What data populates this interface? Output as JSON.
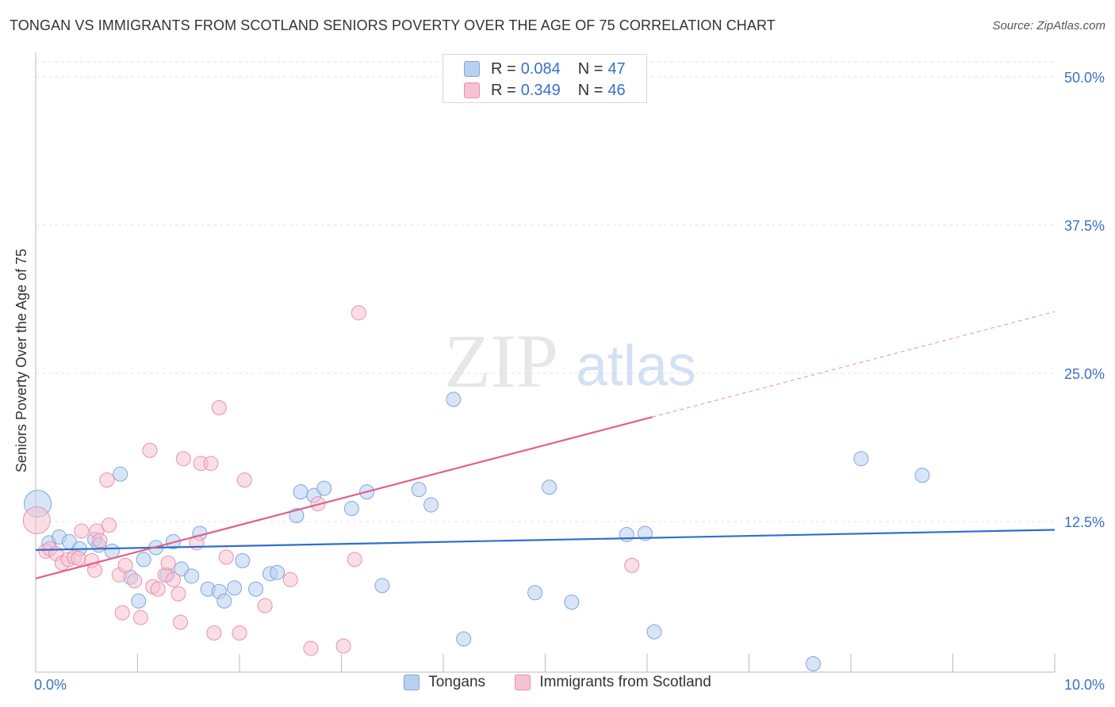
{
  "title": "TONGAN VS IMMIGRANTS FROM SCOTLAND SENIORS POVERTY OVER THE AGE OF 75 CORRELATION CHART",
  "source": "Source: ZipAtlas.com",
  "watermark": {
    "zip": "ZIP",
    "atlas": "atlas"
  },
  "stats": {
    "tongans": {
      "r_label": "R =",
      "r": "0.084",
      "n_label": "N =",
      "n": "47"
    },
    "scotland": {
      "r_label": "R =",
      "r": "0.349",
      "n_label": "N =",
      "n": "46"
    }
  },
  "colors": {
    "blue_fill": "#b8d0f0",
    "blue_stroke": "#7fa6de",
    "blue_line": "#2e6fd0",
    "pink_fill": "#f6c2d1",
    "pink_stroke": "#ea8fab",
    "pink_line": "#e0608b",
    "grid": "#e3e3e3",
    "tick_text": "#3a70c8"
  },
  "chart_data": {
    "type": "scatter",
    "xlabel": "",
    "ylabel": "Seniors Poverty Over the Age of 75",
    "xlim": [
      0,
      10
    ],
    "ylim": [
      0,
      50
    ],
    "x_tick_labels": [
      {
        "value": 0,
        "label": "0.0%"
      },
      {
        "value": 10,
        "label": "10.0%"
      }
    ],
    "y_tick_labels": [
      {
        "value": 12.5,
        "label": "12.5%"
      },
      {
        "value": 25,
        "label": "25.0%"
      },
      {
        "value": 37.5,
        "label": "37.5%"
      },
      {
        "value": 50,
        "label": "50.0%"
      }
    ],
    "grid": true,
    "legend_position": "bottom-center",
    "series": [
      {
        "name": "Tongans",
        "color": "#b8d0f0",
        "trend": {
          "x": [
            0,
            10
          ],
          "y": [
            10.1,
            11.8
          ],
          "dashed_from": null
        },
        "points": [
          {
            "x": 0.02,
            "y": 14.0,
            "big": true
          },
          {
            "x": 0.13,
            "y": 10.7
          },
          {
            "x": 0.23,
            "y": 11.2
          },
          {
            "x": 0.33,
            "y": 10.8
          },
          {
            "x": 0.43,
            "y": 10.2
          },
          {
            "x": 0.58,
            "y": 11.0
          },
          {
            "x": 0.62,
            "y": 10.5
          },
          {
            "x": 0.75,
            "y": 10.0
          },
          {
            "x": 0.83,
            "y": 16.5
          },
          {
            "x": 0.93,
            "y": 7.8
          },
          {
            "x": 1.01,
            "y": 5.8
          },
          {
            "x": 1.06,
            "y": 9.3
          },
          {
            "x": 1.18,
            "y": 10.3
          },
          {
            "x": 1.29,
            "y": 8.0
          },
          {
            "x": 1.35,
            "y": 10.8
          },
          {
            "x": 1.43,
            "y": 8.5
          },
          {
            "x": 1.53,
            "y": 7.9
          },
          {
            "x": 1.61,
            "y": 11.5
          },
          {
            "x": 1.69,
            "y": 6.8
          },
          {
            "x": 1.8,
            "y": 6.6
          },
          {
            "x": 1.85,
            "y": 5.8
          },
          {
            "x": 1.95,
            "y": 6.9
          },
          {
            "x": 2.03,
            "y": 9.2
          },
          {
            "x": 2.16,
            "y": 6.8
          },
          {
            "x": 2.3,
            "y": 8.1
          },
          {
            "x": 2.37,
            "y": 8.2
          },
          {
            "x": 2.56,
            "y": 13.0
          },
          {
            "x": 2.6,
            "y": 15.0
          },
          {
            "x": 2.73,
            "y": 14.7
          },
          {
            "x": 2.83,
            "y": 15.3
          },
          {
            "x": 3.1,
            "y": 13.6
          },
          {
            "x": 3.25,
            "y": 15.0
          },
          {
            "x": 3.4,
            "y": 7.1
          },
          {
            "x": 3.76,
            "y": 15.2
          },
          {
            "x": 3.88,
            "y": 13.9
          },
          {
            "x": 4.1,
            "y": 22.8
          },
          {
            "x": 4.2,
            "y": 2.6
          },
          {
            "x": 4.9,
            "y": 6.5
          },
          {
            "x": 5.04,
            "y": 15.4
          },
          {
            "x": 5.26,
            "y": 5.7
          },
          {
            "x": 5.8,
            "y": 11.4
          },
          {
            "x": 5.98,
            "y": 11.5
          },
          {
            "x": 6.07,
            "y": 3.2
          },
          {
            "x": 7.63,
            "y": 0.5
          },
          {
            "x": 8.1,
            "y": 17.8
          },
          {
            "x": 8.7,
            "y": 16.4
          }
        ]
      },
      {
        "name": "Immigrants from Scotland",
        "color": "#f6c2d1",
        "trend": {
          "x": [
            0,
            10
          ],
          "y": [
            7.7,
            30.2
          ],
          "dashed_from": 6.05
        },
        "points": [
          {
            "x": 0.01,
            "y": 12.6,
            "big": true
          },
          {
            "x": 0.1,
            "y": 10.0
          },
          {
            "x": 0.14,
            "y": 10.2
          },
          {
            "x": 0.2,
            "y": 9.8
          },
          {
            "x": 0.26,
            "y": 9.0
          },
          {
            "x": 0.32,
            "y": 9.3
          },
          {
            "x": 0.38,
            "y": 9.5
          },
          {
            "x": 0.42,
            "y": 9.4
          },
          {
            "x": 0.45,
            "y": 11.7
          },
          {
            "x": 0.55,
            "y": 9.2
          },
          {
            "x": 0.58,
            "y": 8.4
          },
          {
            "x": 0.6,
            "y": 11.7
          },
          {
            "x": 0.63,
            "y": 10.9
          },
          {
            "x": 0.7,
            "y": 16.0
          },
          {
            "x": 0.72,
            "y": 12.2
          },
          {
            "x": 0.82,
            "y": 8.0
          },
          {
            "x": 0.85,
            "y": 4.8
          },
          {
            "x": 0.88,
            "y": 8.8
          },
          {
            "x": 0.97,
            "y": 7.5
          },
          {
            "x": 1.03,
            "y": 4.4
          },
          {
            "x": 1.12,
            "y": 18.5
          },
          {
            "x": 1.15,
            "y": 7.0
          },
          {
            "x": 1.2,
            "y": 6.8
          },
          {
            "x": 1.27,
            "y": 8.0
          },
          {
            "x": 1.3,
            "y": 9.0
          },
          {
            "x": 1.35,
            "y": 7.6
          },
          {
            "x": 1.4,
            "y": 6.4
          },
          {
            "x": 1.42,
            "y": 4.0
          },
          {
            "x": 1.45,
            "y": 17.8
          },
          {
            "x": 1.58,
            "y": 10.7
          },
          {
            "x": 1.62,
            "y": 17.4
          },
          {
            "x": 1.72,
            "y": 17.4
          },
          {
            "x": 1.75,
            "y": 3.1
          },
          {
            "x": 1.8,
            "y": 22.1
          },
          {
            "x": 1.87,
            "y": 9.5
          },
          {
            "x": 2.0,
            "y": 3.1
          },
          {
            "x": 2.05,
            "y": 16.0
          },
          {
            "x": 2.25,
            "y": 5.4
          },
          {
            "x": 2.5,
            "y": 7.6
          },
          {
            "x": 2.7,
            "y": 1.8
          },
          {
            "x": 2.77,
            "y": 14.0
          },
          {
            "x": 3.02,
            "y": 2.0
          },
          {
            "x": 3.13,
            "y": 9.3
          },
          {
            "x": 3.17,
            "y": 30.1
          },
          {
            "x": 5.85,
            "y": 8.8
          }
        ]
      }
    ]
  },
  "legend": {
    "tongans": "Tongans",
    "scotland": "Immigrants from Scotland"
  }
}
